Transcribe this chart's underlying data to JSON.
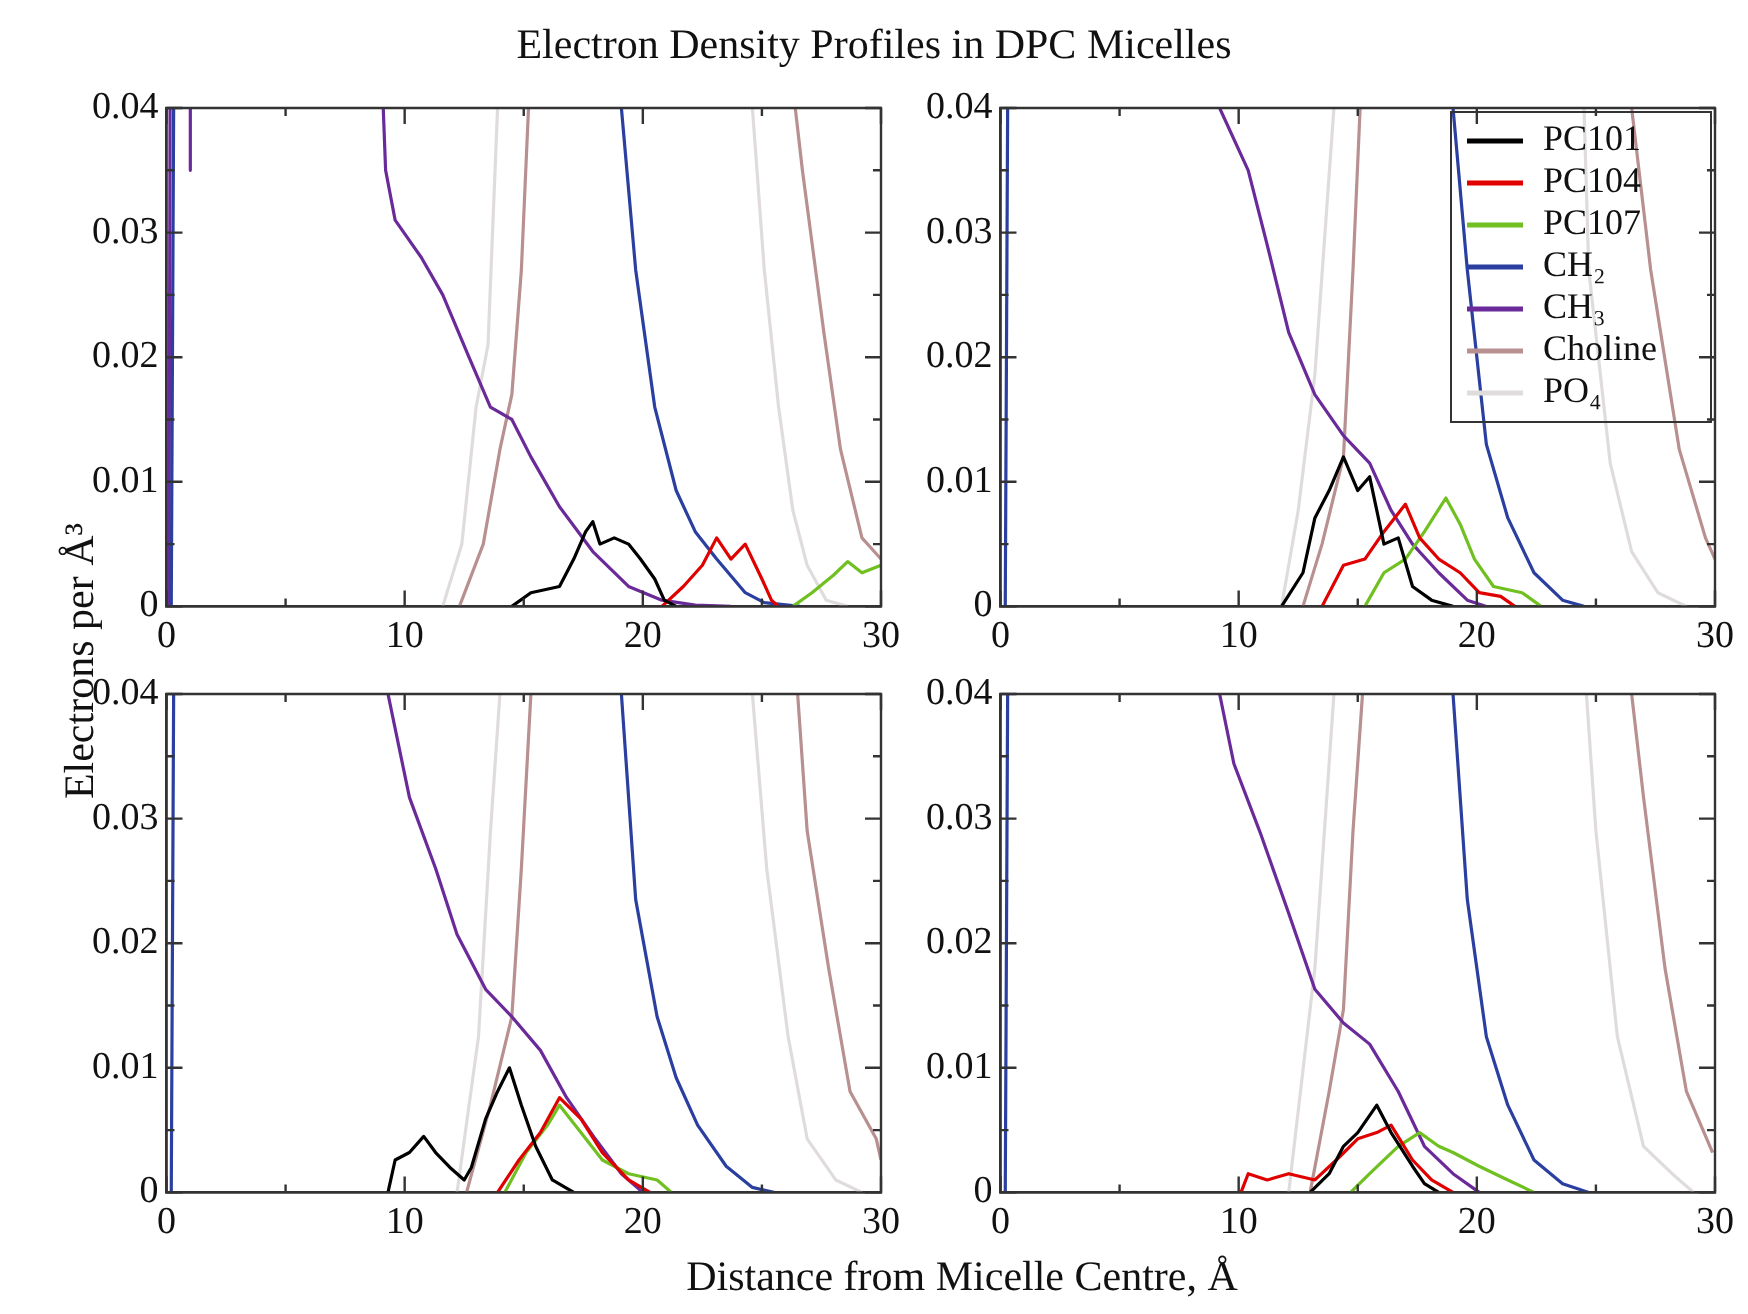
{
  "chart_data": [
    {
      "type": "line",
      "title": "Electron Density Profiles in DPC Micelles",
      "xlabel": "Distance from Micelle Centre, Å",
      "ylabel": "Electrons per Å³",
      "xlim": [
        0,
        30
      ],
      "xticks": [
        0,
        {
          "value": 5,
          "label": null
        },
        10,
        {
          "value": 15,
          "label": null
        },
        20,
        {
          "value": 25,
          "label": null
        },
        30
      ],
      "ylim": [
        0,
        0.04
      ],
      "yticks": [
        0,
        {
          "value": 0.005,
          "label": null
        },
        0.01,
        {
          "value": 0.015,
          "label": null
        },
        0.02,
        {
          "value": 0.025,
          "label": null
        },
        0.03,
        {
          "value": 0.035,
          "label": null
        },
        0.04
      ],
      "marker": "none",
      "series": [
        {
          "color": "#000000",
          "x": [
            14.5,
            15.3,
            16.5,
            17.1,
            17.6,
            17.9,
            18.2,
            18.8,
            19.4,
            19.9,
            20.5,
            20.9,
            21.4
          ],
          "values": [
            0,
            0.0011,
            0.0016,
            0.0038,
            0.006,
            0.0068,
            0.005,
            0.0055,
            0.005,
            0.0038,
            0.0022,
            0.0005,
            0
          ]
        },
        {
          "color": "#e00000",
          "x": [
            20.8,
            21.7,
            22.5,
            23.1,
            23.7,
            24.3,
            25.0,
            25.4,
            25.7
          ],
          "values": [
            0,
            0.0016,
            0.0033,
            0.0055,
            0.0038,
            0.005,
            0.0022,
            0.0005,
            0
          ]
        },
        {
          "color": "#6fc020",
          "x": [
            26.3,
            27.1,
            28.0,
            28.6,
            29.2,
            30
          ],
          "values": [
            0,
            0.0011,
            0.0025,
            0.0036,
            0.0027,
            0.0033
          ]
        },
        {
          "color": "#2a3fa0",
          "x": [
            0.2,
            0.3,
            10,
            19.1,
            19.7,
            20.5,
            21.4,
            22.2,
            23.1,
            24.3,
            25.1,
            26.6
          ],
          "values": [
            0,
            0.04,
            null,
            0.04,
            0.027,
            0.016,
            0.0093,
            0.006,
            0.0038,
            0.0011,
            0.0003,
            0
          ]
        },
        {
          "color": "#6a2a9a",
          "x": [
            0.1,
            0.15,
            0.5,
            1.0,
            1.0,
            5,
            9.1,
            9.2,
            9.6,
            10.7,
            11.6,
            12.7,
            13.6,
            14.5,
            15.3,
            16.5,
            17.9,
            19.4,
            20.8,
            22.2,
            23.7
          ],
          "values": [
            0,
            0.04,
            null,
            0.04,
            0.035,
            null,
            0.04,
            0.035,
            0.031,
            0.028,
            0.025,
            0.02,
            0.016,
            0.015,
            0.012,
            0.008,
            0.0044,
            0.0016,
            0.0005,
            0.0001,
            0
          ]
        },
        {
          "color": "#b89090",
          "x": [
            12.3,
            13.3,
            14.0,
            14.5,
            14.9,
            15.2,
            20,
            26.4,
            26.7,
            27.6,
            28.3,
            29.2,
            30
          ],
          "values": [
            0,
            0.005,
            0.0126,
            0.017,
            0.027,
            0.04,
            null,
            0.04,
            0.035,
            0.022,
            0.0126,
            0.0055,
            0.0038
          ]
        },
        {
          "color": "#e0dcdc",
          "x": [
            11.6,
            12.4,
            13.0,
            13.5,
            13.9,
            19,
            24.6,
            25.1,
            25.7,
            26.3,
            26.9,
            27.7,
            28.6
          ],
          "values": [
            0,
            0.005,
            0.016,
            0.021,
            0.04,
            null,
            0.04,
            0.027,
            0.016,
            0.0077,
            0.0033,
            0.0005,
            0
          ]
        }
      ]
    },
    {
      "type": "line",
      "xlim": [
        0,
        30
      ],
      "xticks": [
        0,
        {
          "value": 5,
          "label": null
        },
        10,
        {
          "value": 15,
          "label": null
        },
        20,
        {
          "value": 25,
          "label": null
        },
        30
      ],
      "ylim": [
        0,
        0.04
      ],
      "yticks": [
        0,
        {
          "value": 0.005,
          "label": null
        },
        0.01,
        {
          "value": 0.015,
          "label": null
        },
        0.02,
        {
          "value": 0.025,
          "label": null
        },
        0.03,
        {
          "value": 0.035,
          "label": null
        },
        0.04
      ],
      "marker": "none",
      "legend": "top right",
      "series": [
        {
          "name": "PC101",
          "color": "#000000",
          "x": [
            11.8,
            12.7,
            13.2,
            13.8,
            14.4,
            15.0,
            15.5,
            16.1,
            16.7,
            17.3,
            18.1,
            19.0
          ],
          "values": [
            0,
            0.0027,
            0.0071,
            0.0093,
            0.012,
            0.0093,
            0.0104,
            0.005,
            0.0055,
            0.0016,
            0.0005,
            0
          ]
        },
        {
          "name": "PC104",
          "color": "#e00000",
          "x": [
            13.5,
            14.4,
            15.3,
            16.1,
            17.0,
            17.6,
            18.4,
            19.3,
            20.1,
            21.0,
            21.6
          ],
          "values": [
            0,
            0.0033,
            0.0038,
            0.006,
            0.0082,
            0.0055,
            0.0038,
            0.0027,
            0.0011,
            0.0008,
            0
          ]
        },
        {
          "name": "PC107",
          "color": "#6fc020",
          "x": [
            15.3,
            16.1,
            17.0,
            17.8,
            18.7,
            19.3,
            19.9,
            20.7,
            21.9,
            22.7
          ],
          "values": [
            0,
            0.0027,
            0.0038,
            0.006,
            0.0087,
            0.0066,
            0.0038,
            0.0016,
            0.0011,
            0
          ]
        },
        {
          "name": "CH₂",
          "color": "#2a3fa0",
          "x": [
            0.2,
            0.3,
            10,
            19.0,
            19.6,
            20.4,
            21.3,
            22.4,
            23.6,
            24.5
          ],
          "values": [
            0,
            0.04,
            null,
            0.04,
            0.027,
            0.013,
            0.0071,
            0.0027,
            0.0005,
            0
          ]
        },
        {
          "name": "CH₃",
          "color": "#6a2a9a",
          "x": [
            9.2,
            10.4,
            11.2,
            12.1,
            13.2,
            14.4,
            15.5,
            16.4,
            17.3,
            18.4,
            19.6,
            20.4
          ],
          "values": [
            0.04,
            0.035,
            0.029,
            0.022,
            0.017,
            0.0137,
            0.0115,
            0.0077,
            0.005,
            0.0027,
            0.0005,
            0
          ]
        },
        {
          "name": "Choline",
          "color": "#b89090",
          "x": [
            12.7,
            13.5,
            14.4,
            14.8,
            15.1,
            20,
            26.5,
            27.3,
            28.5,
            29.6,
            30
          ],
          "values": [
            0,
            0.005,
            0.012,
            0.027,
            0.04,
            null,
            0.04,
            0.027,
            0.0126,
            0.0055,
            0.0038
          ]
        },
        {
          "name": "PO₄",
          "color": "#e0dcdc",
          "x": [
            11.8,
            12.5,
            13.2,
            13.7,
            14.0,
            19,
            24.5,
            24.7,
            25.6,
            26.5,
            27.6,
            28.8
          ],
          "values": [
            0,
            0.0077,
            0.0186,
            0.032,
            0.04,
            null,
            0.04,
            0.027,
            0.0115,
            0.0044,
            0.0011,
            0
          ]
        }
      ]
    },
    {
      "type": "line",
      "xlim": [
        0,
        30
      ],
      "xticks": [
        0,
        {
          "value": 5,
          "label": null
        },
        10,
        {
          "value": 15,
          "label": null
        },
        20,
        {
          "value": 25,
          "label": null
        },
        30
      ],
      "ylim": [
        0,
        0.04
      ],
      "yticks": [
        0,
        {
          "value": 0.005,
          "label": null
        },
        0.01,
        {
          "value": 0.015,
          "label": null
        },
        0.02,
        {
          "value": 0.025,
          "label": null
        },
        0.03,
        {
          "value": 0.035,
          "label": null
        },
        0.04
      ],
      "marker": "none",
      "series": [
        {
          "color": "#000000",
          "x": [
            9.3,
            9.6,
            10.2,
            10.8,
            11.3,
            11.9,
            12.5,
            12.8,
            13.4,
            13.9,
            14.4,
            14.9,
            15.5,
            16.2,
            17.1
          ],
          "values": [
            0,
            0.0026,
            0.0032,
            0.0045,
            0.0032,
            0.002,
            0.001,
            0.002,
            0.0059,
            0.0081,
            0.01,
            0.007,
            0.0037,
            0.001,
            0
          ]
        },
        {
          "color": "#e00000",
          "x": [
            13.9,
            14.8,
            15.7,
            16.5,
            17.4,
            18.3,
            19.4,
            20.3
          ],
          "values": [
            0,
            0.0026,
            0.0048,
            0.0076,
            0.0059,
            0.0032,
            0.001,
            0
          ]
        },
        {
          "color": "#6fc020",
          "x": [
            14.2,
            15.1,
            16.0,
            16.5,
            17.4,
            18.3,
            19.4,
            20.6,
            21.2
          ],
          "values": [
            0,
            0.0032,
            0.0054,
            0.007,
            0.0048,
            0.0026,
            0.0015,
            0.001,
            0
          ]
        },
        {
          "color": "#2a3fa0",
          "x": [
            0.2,
            0.3,
            10,
            19.1,
            19.7,
            20.6,
            21.4,
            22.3,
            23.5,
            24.6,
            25.5
          ],
          "values": [
            0,
            0.04,
            null,
            0.04,
            0.0235,
            0.0141,
            0.0092,
            0.0054,
            0.0021,
            0.0004,
            0
          ]
        },
        {
          "color": "#6a2a9a",
          "x": [
            9.3,
            10.2,
            11.3,
            12.2,
            13.4,
            14.5,
            15.7,
            16.8,
            18.0,
            19.1,
            20.0
          ],
          "values": [
            0.04,
            0.0317,
            0.026,
            0.0207,
            0.0163,
            0.0141,
            0.0114,
            0.0076,
            0.0043,
            0.0015,
            0
          ]
        },
        {
          "color": "#b89090",
          "x": [
            12.6,
            13.6,
            14.5,
            14.9,
            15.3,
            20,
            26.5,
            26.9,
            27.8,
            28.7,
            29.8,
            30
          ],
          "values": [
            0,
            0.007,
            0.0141,
            0.026,
            0.04,
            null,
            0.04,
            0.029,
            0.018,
            0.0081,
            0.0043,
            0.0026
          ]
        },
        {
          "color": "#e0dcdc",
          "x": [
            12.2,
            13.1,
            13.6,
            14.0,
            19,
            24.6,
            25.2,
            26.1,
            26.9,
            28.1,
            29.2
          ],
          "values": [
            0,
            0.0125,
            0.0289,
            0.04,
            null,
            0.04,
            0.026,
            0.0125,
            0.0043,
            0.001,
            0
          ]
        }
      ]
    },
    {
      "type": "line",
      "xlim": [
        0,
        30
      ],
      "xticks": [
        0,
        {
          "value": 5,
          "label": null
        },
        10,
        {
          "value": 15,
          "label": null
        },
        20,
        {
          "value": 25,
          "label": null
        },
        30
      ],
      "ylim": [
        0,
        0.04
      ],
      "yticks": [
        0,
        {
          "value": 0.005,
          "label": null
        },
        0.01,
        {
          "value": 0.015,
          "label": null
        },
        0.02,
        {
          "value": 0.025,
          "label": null
        },
        0.03,
        {
          "value": 0.035,
          "label": null
        },
        0.04
      ],
      "marker": "none",
      "series": [
        {
          "color": "#000000",
          "x": [
            13.0,
            13.8,
            14.4,
            15.0,
            15.8,
            16.4,
            17.3,
            17.8,
            18.4
          ],
          "values": [
            0,
            0.0015,
            0.0037,
            0.0048,
            0.007,
            0.0048,
            0.0021,
            0.0007,
            0
          ]
        },
        {
          "color": "#e00000",
          "x": [
            10.1,
            10.4,
            11.2,
            12.1,
            13.2,
            14.1,
            15.0,
            15.8,
            16.4,
            17.3,
            18.1,
            19.0
          ],
          "values": [
            0,
            0.0015,
            0.001,
            0.0015,
            0.001,
            0.0026,
            0.0043,
            0.0048,
            0.0054,
            0.0026,
            0.001,
            0
          ]
        },
        {
          "color": "#6fc020",
          "x": [
            14.7,
            15.5,
            16.7,
            17.6,
            18.4,
            19.0,
            20.1,
            21.3,
            22.4
          ],
          "values": [
            0,
            0.0015,
            0.0037,
            0.0048,
            0.0037,
            0.0032,
            0.0021,
            0.001,
            0
          ]
        },
        {
          "color": "#2a3fa0",
          "x": [
            0.2,
            0.3,
            10,
            19.0,
            19.6,
            20.4,
            21.3,
            22.4,
            23.6,
            24.7
          ],
          "values": [
            0,
            0.04,
            null,
            0.04,
            0.0235,
            0.0125,
            0.007,
            0.0026,
            0.0007,
            0
          ]
        },
        {
          "color": "#6a2a9a",
          "x": [
            9.2,
            9.8,
            10.9,
            12.1,
            13.2,
            14.4,
            15.5,
            16.7,
            17.8,
            19.0,
            20.1
          ],
          "values": [
            0.04,
            0.0344,
            0.0289,
            0.0224,
            0.0163,
            0.0136,
            0.0119,
            0.0081,
            0.0037,
            0.0015,
            0
          ]
        },
        {
          "color": "#b89090",
          "x": [
            13.0,
            13.8,
            14.4,
            14.8,
            15.2,
            20,
            26.5,
            27.0,
            27.9,
            28.8,
            29.9
          ],
          "values": [
            0,
            0.0081,
            0.0147,
            0.029,
            0.04,
            null,
            0.04,
            0.0317,
            0.018,
            0.0081,
            0.0032
          ]
        },
        {
          "color": "#e0dcdc",
          "x": [
            12.1,
            12.7,
            13.2,
            13.7,
            14.0,
            19,
            24.6,
            25.0,
            25.9,
            27.0,
            28.2,
            29.1
          ],
          "values": [
            0,
            0.0098,
            0.018,
            0.0317,
            0.04,
            null,
            0.04,
            0.029,
            0.0125,
            0.0037,
            0.0015,
            0
          ]
        }
      ]
    }
  ]
}
